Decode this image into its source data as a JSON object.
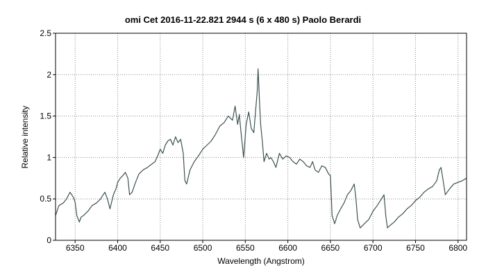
{
  "chart_data": {
    "type": "line",
    "title": "omi Cet   2016-11-22.821   2944 s (6 x 480 s)   Paolo Berardi",
    "xlabel": "Wavelength (Angstrom)",
    "ylabel": "Relative intensity",
    "xlim": [
      6327,
      6810
    ],
    "ylim": [
      0,
      2.5
    ],
    "x_ticks": [
      6350,
      6400,
      6450,
      6500,
      6550,
      6600,
      6650,
      6700,
      6750,
      6800
    ],
    "x_tick_labels": [
      "6350",
      "6400",
      "6450",
      "6500",
      "6550",
      "6600",
      "6650",
      "6700",
      "6750",
      "6800"
    ],
    "y_ticks": [
      0,
      0.5,
      1,
      1.5,
      2,
      2.5
    ],
    "y_tick_labels": [
      "0",
      "0.5",
      "1",
      "1.5",
      "2",
      "2.5"
    ],
    "grid": true,
    "line_color": "#3d5050",
    "series": [
      {
        "x": [
          6327,
          6331,
          6336,
          6340,
          6344,
          6348,
          6350,
          6352,
          6355,
          6357,
          6360,
          6365,
          6370,
          6375,
          6380,
          6383,
          6385,
          6388,
          6391,
          6395,
          6398,
          6400,
          6403,
          6406,
          6409,
          6412,
          6414,
          6417,
          6421,
          6425,
          6430,
          6435,
          6440,
          6444,
          6447,
          6450,
          6453,
          6456,
          6459,
          6462,
          6465,
          6468,
          6471,
          6474,
          6477,
          6479,
          6481,
          6485,
          6490,
          6495,
          6500,
          6505,
          6510,
          6515,
          6520,
          6525,
          6530,
          6535,
          6538,
          6541,
          6543,
          6545,
          6548,
          6551,
          6554,
          6557,
          6560,
          6562,
          6564,
          6565,
          6566,
          6567,
          6568,
          6570,
          6572,
          6575,
          6578,
          6580,
          6583,
          6586,
          6590,
          6594,
          6598,
          6602,
          6606,
          6610,
          6614,
          6618,
          6622,
          6626,
          6629,
          6632,
          6636,
          6640,
          6644,
          6648,
          6650,
          6651,
          6652,
          6655,
          6658,
          6662,
          6666,
          6670,
          6674,
          6678,
          6680,
          6682,
          6685,
          6690,
          6695,
          6700,
          6705,
          6710,
          6713,
          6715,
          6717,
          6720,
          6725,
          6730,
          6735,
          6740,
          6745,
          6750,
          6755,
          6760,
          6765,
          6770,
          6775,
          6778,
          6780,
          6782,
          6785,
          6790,
          6795,
          6800,
          6805,
          6810
        ],
        "y": [
          0.3,
          0.42,
          0.45,
          0.5,
          0.58,
          0.52,
          0.46,
          0.3,
          0.22,
          0.28,
          0.3,
          0.35,
          0.42,
          0.45,
          0.5,
          0.55,
          0.58,
          0.5,
          0.38,
          0.55,
          0.62,
          0.7,
          0.75,
          0.78,
          0.82,
          0.75,
          0.55,
          0.58,
          0.7,
          0.8,
          0.85,
          0.88,
          0.92,
          0.95,
          1.02,
          1.1,
          1.05,
          1.15,
          1.2,
          1.22,
          1.15,
          1.25,
          1.18,
          1.22,
          1.05,
          0.72,
          0.68,
          0.85,
          0.95,
          1.02,
          1.1,
          1.15,
          1.2,
          1.28,
          1.38,
          1.42,
          1.5,
          1.45,
          1.62,
          1.4,
          1.52,
          1.3,
          1.0,
          1.4,
          1.55,
          1.35,
          1.3,
          1.55,
          1.8,
          2.07,
          1.85,
          1.6,
          1.4,
          1.2,
          0.95,
          1.05,
          0.98,
          1.0,
          0.95,
          0.88,
          1.05,
          0.98,
          1.02,
          1.0,
          0.95,
          0.92,
          0.98,
          0.95,
          0.9,
          0.88,
          0.95,
          0.85,
          0.82,
          0.9,
          0.88,
          0.8,
          0.78,
          0.55,
          0.3,
          0.2,
          0.3,
          0.38,
          0.45,
          0.55,
          0.6,
          0.68,
          0.5,
          0.25,
          0.15,
          0.2,
          0.25,
          0.35,
          0.42,
          0.5,
          0.55,
          0.3,
          0.15,
          0.18,
          0.22,
          0.28,
          0.32,
          0.38,
          0.42,
          0.48,
          0.52,
          0.58,
          0.62,
          0.65,
          0.72,
          0.85,
          0.88,
          0.75,
          0.55,
          0.62,
          0.68,
          0.7,
          0.72,
          0.75
        ]
      }
    ]
  }
}
